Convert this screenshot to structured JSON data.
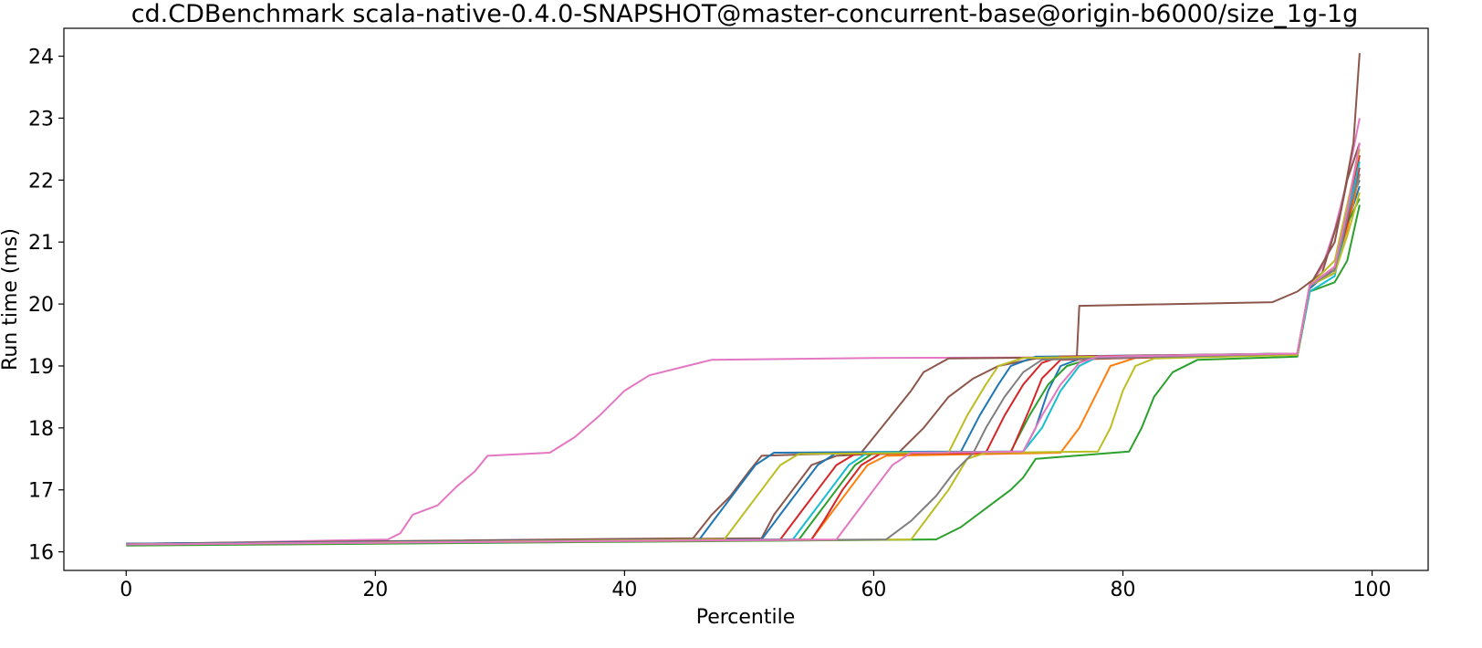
{
  "chart_data": {
    "type": "line",
    "title": "cd.CDBenchmark scala-native-0.4.0-SNAPSHOT@master-concurrent-base@origin-b6000/size_1g-1g",
    "xlabel": "Percentile",
    "ylabel": "Run time (ms)",
    "xlim": [
      -5,
      104.5
    ],
    "ylim": [
      15.7,
      24.45
    ],
    "xticks": [
      0,
      20,
      40,
      60,
      80,
      100
    ],
    "yticks": [
      16,
      17,
      18,
      19,
      20,
      21,
      22,
      23,
      24
    ],
    "xtick_labels": [
      "0",
      "20",
      "40",
      "60",
      "80",
      "100"
    ],
    "ytick_labels": [
      "16",
      "17",
      "18",
      "19",
      "20",
      "21",
      "22",
      "23",
      "24"
    ],
    "grid": false,
    "legend": "none",
    "series": [
      {
        "color": "#e377c2",
        "points": [
          [
            0,
            16.12
          ],
          [
            21,
            16.2
          ],
          [
            22,
            16.3
          ],
          [
            23,
            16.6
          ],
          [
            25,
            16.75
          ],
          [
            26.5,
            17.05
          ],
          [
            28,
            17.3
          ],
          [
            29,
            17.55
          ],
          [
            34,
            17.6
          ],
          [
            36,
            17.85
          ],
          [
            38,
            18.2
          ],
          [
            40,
            18.6
          ],
          [
            42,
            18.85
          ],
          [
            45,
            19.0
          ],
          [
            47,
            19.1
          ],
          [
            60,
            19.13
          ],
          [
            76,
            19.14
          ],
          [
            94,
            19.2
          ],
          [
            95,
            20.3
          ],
          [
            96,
            20.6
          ],
          [
            97,
            21.2
          ],
          [
            98,
            22.0
          ],
          [
            99,
            23.0
          ]
        ]
      },
      {
        "color": "#8c564b",
        "points": [
          [
            0,
            16.13
          ],
          [
            45.5,
            16.22
          ],
          [
            47,
            16.6
          ],
          [
            48.5,
            16.9
          ],
          [
            50,
            17.3
          ],
          [
            51,
            17.55
          ],
          [
            59,
            17.6
          ],
          [
            61,
            18.1
          ],
          [
            63,
            18.6
          ],
          [
            64,
            18.9
          ],
          [
            66,
            19.12
          ],
          [
            75,
            19.14
          ],
          [
            76.3,
            19.15
          ],
          [
            76.5,
            19.97
          ],
          [
            92,
            20.03
          ],
          [
            94,
            20.2
          ],
          [
            96,
            20.5
          ],
          [
            97.5,
            21.5
          ],
          [
            98.5,
            22.6
          ],
          [
            99,
            24.05
          ]
        ]
      },
      {
        "color": "#8c564b",
        "points": [
          [
            0,
            16.13
          ],
          [
            51,
            16.22
          ],
          [
            52,
            16.6
          ],
          [
            53.5,
            17.0
          ],
          [
            55,
            17.4
          ],
          [
            57,
            17.55
          ],
          [
            62,
            17.6
          ],
          [
            64,
            18.0
          ],
          [
            66,
            18.5
          ],
          [
            68,
            18.8
          ],
          [
            70,
            19.0
          ],
          [
            73,
            19.12
          ],
          [
            94,
            19.18
          ],
          [
            95,
            20.3
          ],
          [
            97,
            21.0
          ],
          [
            98,
            22.0
          ],
          [
            99,
            22.6
          ]
        ]
      },
      {
        "color": "#1f77b4",
        "points": [
          [
            0,
            16.13
          ],
          [
            46,
            16.2
          ],
          [
            47.5,
            16.6
          ],
          [
            49,
            17.0
          ],
          [
            50.5,
            17.4
          ],
          [
            52,
            17.6
          ],
          [
            67,
            17.62
          ],
          [
            68.5,
            18.2
          ],
          [
            70,
            18.7
          ],
          [
            71,
            19.0
          ],
          [
            73,
            19.15
          ],
          [
            94,
            19.2
          ],
          [
            95,
            20.25
          ],
          [
            97,
            20.6
          ],
          [
            98,
            21.3
          ],
          [
            99,
            21.9
          ]
        ]
      },
      {
        "color": "#1f77b4",
        "points": [
          [
            0,
            16.12
          ],
          [
            51,
            16.2
          ],
          [
            52.5,
            16.6
          ],
          [
            54,
            17.0
          ],
          [
            55.5,
            17.4
          ],
          [
            57,
            17.6
          ],
          [
            72,
            17.62
          ],
          [
            73,
            18.0
          ],
          [
            74,
            18.6
          ],
          [
            75,
            19.0
          ],
          [
            77,
            19.15
          ],
          [
            94,
            19.2
          ],
          [
            95,
            20.3
          ],
          [
            97,
            20.5
          ],
          [
            98,
            21.5
          ],
          [
            99,
            22.0
          ]
        ]
      },
      {
        "color": "#ff7f0e",
        "points": [
          [
            0,
            16.12
          ],
          [
            55,
            16.2
          ],
          [
            56.5,
            16.6
          ],
          [
            58,
            17.0
          ],
          [
            59.5,
            17.4
          ],
          [
            61,
            17.55
          ],
          [
            75,
            17.6
          ],
          [
            76.5,
            18.0
          ],
          [
            78,
            18.6
          ],
          [
            79,
            19.0
          ],
          [
            81,
            19.13
          ],
          [
            94,
            19.18
          ],
          [
            95,
            20.3
          ],
          [
            97,
            20.6
          ],
          [
            98,
            21.2
          ],
          [
            99,
            22.1
          ]
        ]
      },
      {
        "color": "#2ca02c",
        "points": [
          [
            0,
            16.1
          ],
          [
            65,
            16.2
          ],
          [
            67,
            16.4
          ],
          [
            69,
            16.7
          ],
          [
            71,
            17.0
          ],
          [
            72,
            17.2
          ],
          [
            73,
            17.5
          ],
          [
            80.5,
            17.62
          ],
          [
            81.5,
            18.0
          ],
          [
            82.5,
            18.5
          ],
          [
            84,
            18.9
          ],
          [
            86,
            19.1
          ],
          [
            94,
            19.15
          ],
          [
            95,
            20.2
          ],
          [
            97,
            20.35
          ],
          [
            98,
            20.7
          ],
          [
            99,
            21.6
          ]
        ]
      },
      {
        "color": "#2ca02c",
        "points": [
          [
            0,
            16.12
          ],
          [
            54,
            16.2
          ],
          [
            55.5,
            16.6
          ],
          [
            57,
            17.0
          ],
          [
            58.5,
            17.4
          ],
          [
            60,
            17.6
          ],
          [
            71,
            17.62
          ],
          [
            72.5,
            18.2
          ],
          [
            74,
            18.7
          ],
          [
            75.5,
            19.0
          ],
          [
            78,
            19.15
          ],
          [
            94,
            19.2
          ],
          [
            95,
            20.3
          ],
          [
            97,
            20.5
          ],
          [
            98,
            21.3
          ],
          [
            99,
            21.7
          ]
        ]
      },
      {
        "color": "#d62728",
        "points": [
          [
            0,
            16.12
          ],
          [
            52.5,
            16.2
          ],
          [
            54,
            16.6
          ],
          [
            55.5,
            17.0
          ],
          [
            57,
            17.4
          ],
          [
            58.5,
            17.58
          ],
          [
            69,
            17.6
          ],
          [
            70.5,
            18.2
          ],
          [
            72,
            18.7
          ],
          [
            73.5,
            19.05
          ],
          [
            75,
            19.15
          ],
          [
            94,
            19.2
          ],
          [
            95,
            20.3
          ],
          [
            97,
            20.55
          ],
          [
            98,
            21.3
          ],
          [
            99,
            22.2
          ]
        ]
      },
      {
        "color": "#d62728",
        "points": [
          [
            0,
            16.12
          ],
          [
            55,
            16.2
          ],
          [
            56,
            16.5
          ],
          [
            57.5,
            17.0
          ],
          [
            59,
            17.4
          ],
          [
            60.5,
            17.58
          ],
          [
            71,
            17.6
          ],
          [
            72.5,
            18.3
          ],
          [
            73.5,
            18.8
          ],
          [
            75,
            19.1
          ],
          [
            94,
            19.2
          ],
          [
            95,
            20.3
          ],
          [
            97,
            20.6
          ],
          [
            98,
            21.4
          ],
          [
            99,
            22.4
          ]
        ]
      },
      {
        "color": "#17becf",
        "points": [
          [
            0,
            16.12
          ],
          [
            53.5,
            16.2
          ],
          [
            55,
            16.6
          ],
          [
            56.5,
            17.0
          ],
          [
            58,
            17.4
          ],
          [
            59.5,
            17.6
          ],
          [
            72,
            17.62
          ],
          [
            73.5,
            18.0
          ],
          [
            75,
            18.6
          ],
          [
            76.5,
            19.0
          ],
          [
            78,
            19.15
          ],
          [
            94,
            19.2
          ],
          [
            95,
            20.2
          ],
          [
            97,
            20.45
          ],
          [
            98,
            21.4
          ],
          [
            99,
            22.3
          ]
        ]
      },
      {
        "color": "#bcbd22",
        "points": [
          [
            0,
            16.12
          ],
          [
            48,
            16.2
          ],
          [
            49.5,
            16.6
          ],
          [
            51,
            17.0
          ],
          [
            52.5,
            17.4
          ],
          [
            54,
            17.58
          ],
          [
            66,
            17.6
          ],
          [
            67.5,
            18.2
          ],
          [
            69,
            18.7
          ],
          [
            70,
            19.0
          ],
          [
            72,
            19.13
          ],
          [
            94,
            19.2
          ],
          [
            95,
            20.3
          ],
          [
            97,
            20.7
          ],
          [
            98,
            21.6
          ],
          [
            99,
            22.5
          ]
        ]
      },
      {
        "color": "#bcbd22",
        "points": [
          [
            0,
            16.12
          ],
          [
            63,
            16.2
          ],
          [
            64.5,
            16.6
          ],
          [
            66,
            17.0
          ],
          [
            67.5,
            17.5
          ],
          [
            69,
            17.6
          ],
          [
            78,
            17.62
          ],
          [
            79,
            18.0
          ],
          [
            80,
            18.6
          ],
          [
            81,
            19.0
          ],
          [
            82.5,
            19.12
          ],
          [
            94,
            19.18
          ],
          [
            95,
            20.3
          ],
          [
            97,
            20.5
          ],
          [
            98,
            21.1
          ],
          [
            99,
            21.8
          ]
        ]
      },
      {
        "color": "#7f7f7f",
        "points": [
          [
            0,
            16.12
          ],
          [
            61,
            16.2
          ],
          [
            63,
            16.5
          ],
          [
            65,
            16.9
          ],
          [
            66.5,
            17.3
          ],
          [
            68,
            17.6
          ],
          [
            69,
            18.0
          ],
          [
            70.5,
            18.5
          ],
          [
            72,
            18.9
          ],
          [
            73.5,
            19.1
          ],
          [
            94,
            19.2
          ],
          [
            95,
            20.3
          ],
          [
            97,
            20.55
          ],
          [
            98,
            21.4
          ],
          [
            99,
            22.1
          ]
        ]
      },
      {
        "color": "#e377c2",
        "points": [
          [
            0,
            16.12
          ],
          [
            57,
            16.2
          ],
          [
            58.5,
            16.6
          ],
          [
            60,
            17.0
          ],
          [
            61.5,
            17.4
          ],
          [
            63,
            17.6
          ],
          [
            72,
            17.62
          ],
          [
            73.5,
            18.2
          ],
          [
            75,
            18.7
          ],
          [
            76.5,
            19.05
          ],
          [
            78,
            19.15
          ],
          [
            94,
            19.2
          ],
          [
            95,
            20.3
          ],
          [
            97,
            20.6
          ],
          [
            98,
            21.5
          ],
          [
            99,
            22.6
          ]
        ]
      }
    ]
  }
}
